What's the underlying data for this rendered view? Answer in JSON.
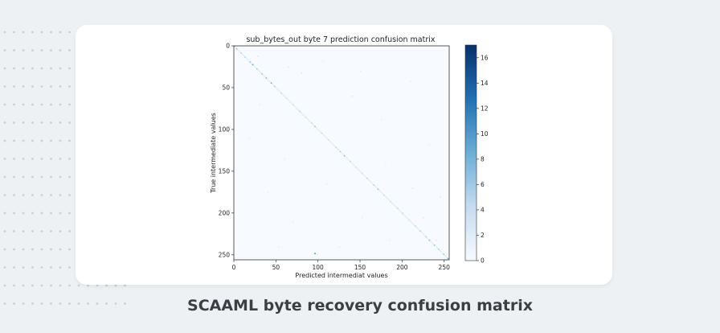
{
  "caption": "SCAAML byte recovery confusion matrix",
  "colors": {
    "background": "#eef1f4",
    "card": "#ffffff",
    "dots": "#c9cfd6",
    "cmap_low": "#f7fbff",
    "cmap_high": "#08306b"
  },
  "chart_data": {
    "type": "heatmap",
    "title": "sub_bytes_out byte 7 prediction confusion matrix",
    "xlabel": "Predicted intermediat values",
    "ylabel": "True intermediate values",
    "xlim": [
      0,
      255
    ],
    "ylim": [
      0,
      255
    ],
    "x_ticks": [
      0,
      50,
      100,
      150,
      200,
      250
    ],
    "y_ticks": [
      0,
      50,
      100,
      150,
      200,
      250
    ],
    "colorbar_ticks": [
      0,
      2,
      4,
      6,
      8,
      10,
      12,
      14,
      16
    ],
    "colorbar_range": [
      0,
      17
    ],
    "colormap": "Blues",
    "matrix_size": 256,
    "cells": [
      {
        "x": 0,
        "y": 0,
        "v": 9
      },
      {
        "x": 3,
        "y": 3,
        "v": 7
      },
      {
        "x": 8,
        "y": 8,
        "v": 5
      },
      {
        "x": 13,
        "y": 13,
        "v": 6
      },
      {
        "x": 19,
        "y": 19,
        "v": 7
      },
      {
        "x": 22,
        "y": 22,
        "v": 10
      },
      {
        "x": 27,
        "y": 27,
        "v": 6
      },
      {
        "x": 33,
        "y": 33,
        "v": 7
      },
      {
        "x": 38,
        "y": 38,
        "v": 8
      },
      {
        "x": 44,
        "y": 44,
        "v": 9
      },
      {
        "x": 48,
        "y": 48,
        "v": 6
      },
      {
        "x": 56,
        "y": 56,
        "v": 5
      },
      {
        "x": 62,
        "y": 62,
        "v": 4
      },
      {
        "x": 70,
        "y": 70,
        "v": 4
      },
      {
        "x": 78,
        "y": 78,
        "v": 5
      },
      {
        "x": 85,
        "y": 85,
        "v": 4
      },
      {
        "x": 92,
        "y": 92,
        "v": 5
      },
      {
        "x": 96,
        "y": 96,
        "v": 7
      },
      {
        "x": 104,
        "y": 104,
        "v": 5
      },
      {
        "x": 112,
        "y": 112,
        "v": 4
      },
      {
        "x": 121,
        "y": 121,
        "v": 5
      },
      {
        "x": 126,
        "y": 126,
        "v": 6
      },
      {
        "x": 131,
        "y": 131,
        "v": 8
      },
      {
        "x": 138,
        "y": 138,
        "v": 5
      },
      {
        "x": 145,
        "y": 145,
        "v": 4
      },
      {
        "x": 152,
        "y": 152,
        "v": 4
      },
      {
        "x": 158,
        "y": 158,
        "v": 5
      },
      {
        "x": 166,
        "y": 166,
        "v": 6
      },
      {
        "x": 171,
        "y": 171,
        "v": 7
      },
      {
        "x": 178,
        "y": 178,
        "v": 5
      },
      {
        "x": 186,
        "y": 186,
        "v": 4
      },
      {
        "x": 194,
        "y": 194,
        "v": 5
      },
      {
        "x": 200,
        "y": 200,
        "v": 5
      },
      {
        "x": 208,
        "y": 208,
        "v": 4
      },
      {
        "x": 215,
        "y": 215,
        "v": 5
      },
      {
        "x": 221,
        "y": 221,
        "v": 6
      },
      {
        "x": 228,
        "y": 228,
        "v": 6
      },
      {
        "x": 232,
        "y": 232,
        "v": 8
      },
      {
        "x": 238,
        "y": 238,
        "v": 7
      },
      {
        "x": 243,
        "y": 243,
        "v": 6
      },
      {
        "x": 249,
        "y": 249,
        "v": 7
      },
      {
        "x": 254,
        "y": 254,
        "v": 9
      },
      {
        "x": 96,
        "y": 248,
        "v": 12
      },
      {
        "x": 28,
        "y": 12,
        "v": 3
      },
      {
        "x": 64,
        "y": 25,
        "v": 3
      },
      {
        "x": 80,
        "y": 32,
        "v": 3
      },
      {
        "x": 105,
        "y": 18,
        "v": 2
      },
      {
        "x": 150,
        "y": 30,
        "v": 2
      },
      {
        "x": 210,
        "y": 42,
        "v": 2
      },
      {
        "x": 30,
        "y": 70,
        "v": 2
      },
      {
        "x": 18,
        "y": 110,
        "v": 2
      },
      {
        "x": 60,
        "y": 135,
        "v": 2
      },
      {
        "x": 140,
        "y": 60,
        "v": 3
      },
      {
        "x": 175,
        "y": 88,
        "v": 2
      },
      {
        "x": 232,
        "y": 118,
        "v": 2
      },
      {
        "x": 110,
        "y": 165,
        "v": 2
      },
      {
        "x": 40,
        "y": 175,
        "v": 2
      },
      {
        "x": 180,
        "y": 140,
        "v": 2
      },
      {
        "x": 212,
        "y": 170,
        "v": 3
      },
      {
        "x": 245,
        "y": 180,
        "v": 3
      },
      {
        "x": 152,
        "y": 205,
        "v": 2
      },
      {
        "x": 225,
        "y": 205,
        "v": 3
      },
      {
        "x": 70,
        "y": 210,
        "v": 2
      },
      {
        "x": 240,
        "y": 232,
        "v": 3
      },
      {
        "x": 185,
        "y": 232,
        "v": 2
      },
      {
        "x": 125,
        "y": 240,
        "v": 2
      },
      {
        "x": 53,
        "y": 240,
        "v": 2
      }
    ]
  }
}
